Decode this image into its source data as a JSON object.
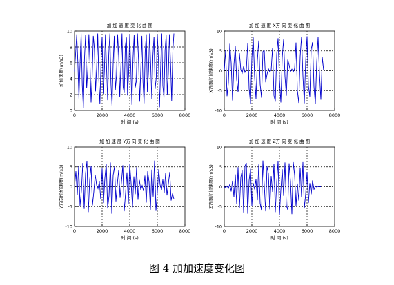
{
  "caption": "图 4  加加速度变化图",
  "colors": {
    "line": "#0000cc",
    "axis": "#000000",
    "grid": "#000000"
  },
  "chart_data": [
    {
      "type": "line",
      "title": "加 加 速 度 变 化 曲 图",
      "xlabel": "时 间 (s)",
      "ylabel": "加加速度(m/s3)",
      "xlim": [
        0,
        8000
      ],
      "ylim": [
        0,
        10
      ],
      "xticks": [
        0,
        2000,
        4000,
        6000,
        8000
      ],
      "yticks": [
        0,
        2,
        4,
        6,
        8,
        10
      ],
      "grid": true,
      "x": [
        0,
        80,
        160,
        240,
        320,
        400,
        480,
        560,
        640,
        720,
        800,
        880,
        960,
        1040,
        1120,
        1200,
        1280,
        1360,
        1440,
        1520,
        1600,
        1680,
        1760,
        1840,
        1920,
        2000,
        2080,
        2160,
        2240,
        2320,
        2400,
        2480,
        2560,
        2640,
        2720,
        2800,
        2880,
        2960,
        3040,
        3120,
        3200,
        3280,
        3360,
        3440,
        3520,
        3600,
        3680,
        3760,
        3840,
        3920,
        4000,
        4080,
        4160,
        4240,
        4320,
        4400,
        4480,
        4560,
        4640,
        4720,
        4800,
        4880,
        4960,
        5040,
        5120,
        5200,
        5280,
        5360,
        5440,
        5520,
        5600,
        5680,
        5760,
        5840,
        5920,
        6000,
        6080,
        6160,
        6240,
        6320,
        6400,
        6480,
        6560,
        6640,
        6720,
        6800,
        6880,
        6960,
        7040,
        7120,
        7200
      ],
      "series": [
        {
          "values": [
            4.9,
            7.2,
            9.6,
            6.1,
            1.5,
            5.8,
            9.7,
            3.2,
            0.3,
            6.5,
            9.5,
            2.8,
            5.1,
            9.6,
            6.0,
            1.0,
            4.2,
            9.4,
            7.8,
            2.4,
            5.3,
            9.7,
            3.9,
            0.8,
            6.2,
            9.3,
            2.1,
            4.8,
            9.6,
            5.5,
            1.3,
            7.0,
            9.7,
            3.4,
            0.6,
            5.9,
            9.4,
            2.6,
            4.4,
            9.6,
            6.8,
            1.7,
            5.6,
            9.7,
            3.0,
            2.2,
            8.1,
            9.2,
            1.9,
            4.6,
            9.6,
            5.2,
            0.7,
            6.6,
            9.5,
            2.9,
            3.7,
            9.7,
            6.3,
            1.1,
            5.0,
            9.4,
            3.6,
            0.9,
            7.4,
            9.6,
            2.3,
            4.9,
            9.7,
            5.7,
            1.4,
            6.9,
            9.3,
            2.7,
            4.1,
            9.6,
            6.4,
            0.4,
            5.4,
            9.7,
            3.1,
            1.6,
            7.6,
            9.5,
            2.0,
            4.7,
            9.6,
            5.9,
            1.2,
            7.3,
            9.7
          ]
        }
      ]
    },
    {
      "type": "line",
      "title": "加 加 速 度 X方 向 变 化 曲 图",
      "xlabel": "时 间 (s)",
      "ylabel": "X方向加加速度(m/s3)",
      "xlim": [
        0,
        8000
      ],
      "ylim": [
        -10,
        10
      ],
      "xticks": [
        0,
        2000,
        4000,
        6000,
        8000
      ],
      "yticks": [
        -10,
        -5,
        0,
        5,
        10
      ],
      "grid": true,
      "x": [
        0,
        100,
        200,
        300,
        400,
        500,
        600,
        700,
        800,
        900,
        1000,
        1100,
        1200,
        1300,
        1400,
        1500,
        1600,
        1700,
        1800,
        1900,
        2000,
        2100,
        2200,
        2300,
        2400,
        2500,
        2600,
        2700,
        2800,
        2900,
        3000,
        3100,
        3200,
        3300,
        3400,
        3500,
        3600,
        3700,
        3800,
        3900,
        4000,
        4100,
        4200,
        4300,
        4400,
        4500,
        4600,
        4700,
        4800,
        4900,
        5000,
        5100,
        5200,
        5300,
        5400,
        5500,
        5600,
        5700,
        5800,
        5900,
        6000,
        6100,
        6200,
        6300,
        6400,
        6500,
        6600,
        6700,
        6800,
        6900,
        7000,
        7100,
        7200
      ],
      "series": [
        {
          "values": [
            0,
            5.2,
            -6.4,
            -3.1,
            6.8,
            2.0,
            -7.5,
            1.4,
            6.2,
            -2.2,
            -5.3,
            4.4,
            0.2,
            -0.6,
            1.1,
            -0.4,
            0.3,
            6.9,
            -4.5,
            -8.3,
            3.2,
            8.4,
            -1.6,
            -7.1,
            2.6,
            7.6,
            -3.4,
            -6.8,
            4.8,
            5.1,
            -2.9,
            -0.9,
            0.5,
            -0.3,
            0.2,
            5.8,
            -6.2,
            -7.8,
            4.1,
            8.2,
            -2.3,
            -8.0,
            3.3,
            7.9,
            -1.4,
            -6.3,
            2.8,
            1.5,
            -0.2,
            0.4,
            -0.3,
            0.6,
            7.1,
            -5.0,
            -8.1,
            3.6,
            8.6,
            -1.3,
            -8.2,
            2.4,
            8.7,
            -3.8,
            -6.5,
            5.4,
            7.2,
            -4.0,
            -8.4,
            2.1,
            8.5,
            -0.7,
            -7.3,
            3.5,
            0.1
          ]
        }
      ]
    },
    {
      "type": "line",
      "title": "加 加 速 度 Y方 向 变 化 曲 图",
      "xlabel": "时 间 (s)",
      "ylabel": "Y方向加加速度(m/s3)",
      "xlim": [
        0,
        8000
      ],
      "ylim": [
        -10,
        10
      ],
      "xticks": [
        0,
        2000,
        4000,
        6000,
        8000
      ],
      "yticks": [
        -10,
        -5,
        0,
        5,
        10
      ],
      "grid": true,
      "x": [
        0,
        100,
        200,
        300,
        400,
        500,
        600,
        700,
        800,
        900,
        1000,
        1100,
        1200,
        1300,
        1400,
        1500,
        1600,
        1700,
        1800,
        1900,
        2000,
        2100,
        2200,
        2300,
        2400,
        2500,
        2600,
        2700,
        2800,
        2900,
        3000,
        3100,
        3200,
        3300,
        3400,
        3500,
        3600,
        3700,
        3800,
        3900,
        4000,
        4100,
        4200,
        4300,
        4400,
        4500,
        4600,
        4700,
        4800,
        4900,
        5000,
        5100,
        5200,
        5300,
        5400,
        5500,
        5600,
        5700,
        5800,
        5900,
        6000,
        6100,
        6200,
        6300,
        6400,
        6500,
        6600,
        6700,
        6800,
        6900,
        7000,
        7100,
        7200
      ],
      "series": [
        {
          "values": [
            0,
            3.9,
            -2.1,
            5.2,
            -4.8,
            -1.0,
            6.0,
            -5.6,
            3.4,
            6.4,
            -6.4,
            1.8,
            5.3,
            -4.7,
            -1.2,
            3.0,
            0.4,
            -0.5,
            1.3,
            -3.2,
            4.6,
            -4.1,
            2.2,
            5.8,
            -5.5,
            -2.3,
            6.1,
            -6.8,
            2.9,
            5.1,
            -3.7,
            0.6,
            4.2,
            -2.8,
            1.1,
            5.4,
            -6.2,
            -1.5,
            3.6,
            -4.4,
            5.7,
            0.9,
            -5.2,
            2.6,
            -1.9,
            4.9,
            -3.3,
            1.7,
            -0.8,
            0.3,
            -1.1,
            2.8,
            -4.0,
            3.9,
            1.2,
            -5.8,
            4.3,
            -2.5,
            6.6,
            -6.1,
            -1.4,
            4.4,
            0.5,
            -0.9,
            1.8,
            -1.5,
            3.4,
            -2.2,
            0.7,
            3.7,
            -3.5,
            -1.7,
            -3.1
          ]
        }
      ]
    },
    {
      "type": "line",
      "title": "加 加 速 度 Z方 向 变 化 曲 图",
      "xlabel": "时 间 (s)",
      "ylabel": "Z方向加加速度(m/s3)",
      "xlim": [
        0,
        8000
      ],
      "ylim": [
        -10,
        10
      ],
      "xticks": [
        0,
        2000,
        4000,
        6000,
        8000
      ],
      "yticks": [
        -10,
        -5,
        0,
        5,
        10
      ],
      "grid": true,
      "x": [
        0,
        100,
        200,
        300,
        400,
        500,
        600,
        700,
        800,
        900,
        1000,
        1100,
        1200,
        1300,
        1400,
        1500,
        1600,
        1700,
        1800,
        1900,
        2000,
        2100,
        2200,
        2300,
        2400,
        2500,
        2600,
        2700,
        2800,
        2900,
        3000,
        3100,
        3200,
        3300,
        3400,
        3500,
        3600,
        3700,
        3800,
        3900,
        4000,
        4100,
        4200,
        4300,
        4400,
        4500,
        4600,
        4700,
        4800,
        4900,
        5000,
        5100,
        5200,
        5300,
        5400,
        5500,
        5600,
        5700,
        5800,
        5900,
        6000,
        6100,
        6200,
        6300,
        6400,
        6500,
        6600,
        6700,
        6800,
        6900,
        7000
      ],
      "series": [
        {
          "values": [
            0,
            -0.3,
            0.2,
            -0.4,
            0.6,
            -1.2,
            1.5,
            -2.6,
            3.1,
            -4.3,
            4.9,
            -5.3,
            2.4,
            4.1,
            -6.5,
            5.2,
            6.0,
            -6.8,
            1.6,
            4.5,
            -4.8,
            0.9,
            -0.7,
            1.9,
            -3.4,
            5.6,
            -4.2,
            -6.0,
            6.6,
            0.4,
            -6.2,
            5.1,
            3.3,
            -5.7,
            2.7,
            -1.3,
            5.8,
            -6.4,
            1.1,
            6.5,
            -7.1,
            -0.8,
            4.4,
            -2.3,
            6.1,
            -4.7,
            -5.8,
            5.9,
            1.3,
            -6.9,
            6.2,
            2.9,
            -4.9,
            0.8,
            -3.5,
            4.8,
            -2.6,
            6.2,
            -5.5,
            -1.8,
            3.7,
            -4.1,
            0.9,
            -1.9,
            1.6,
            -0.7,
            0.2,
            -0.1,
            0.1,
            0.0,
            0.0
          ]
        }
      ]
    }
  ]
}
